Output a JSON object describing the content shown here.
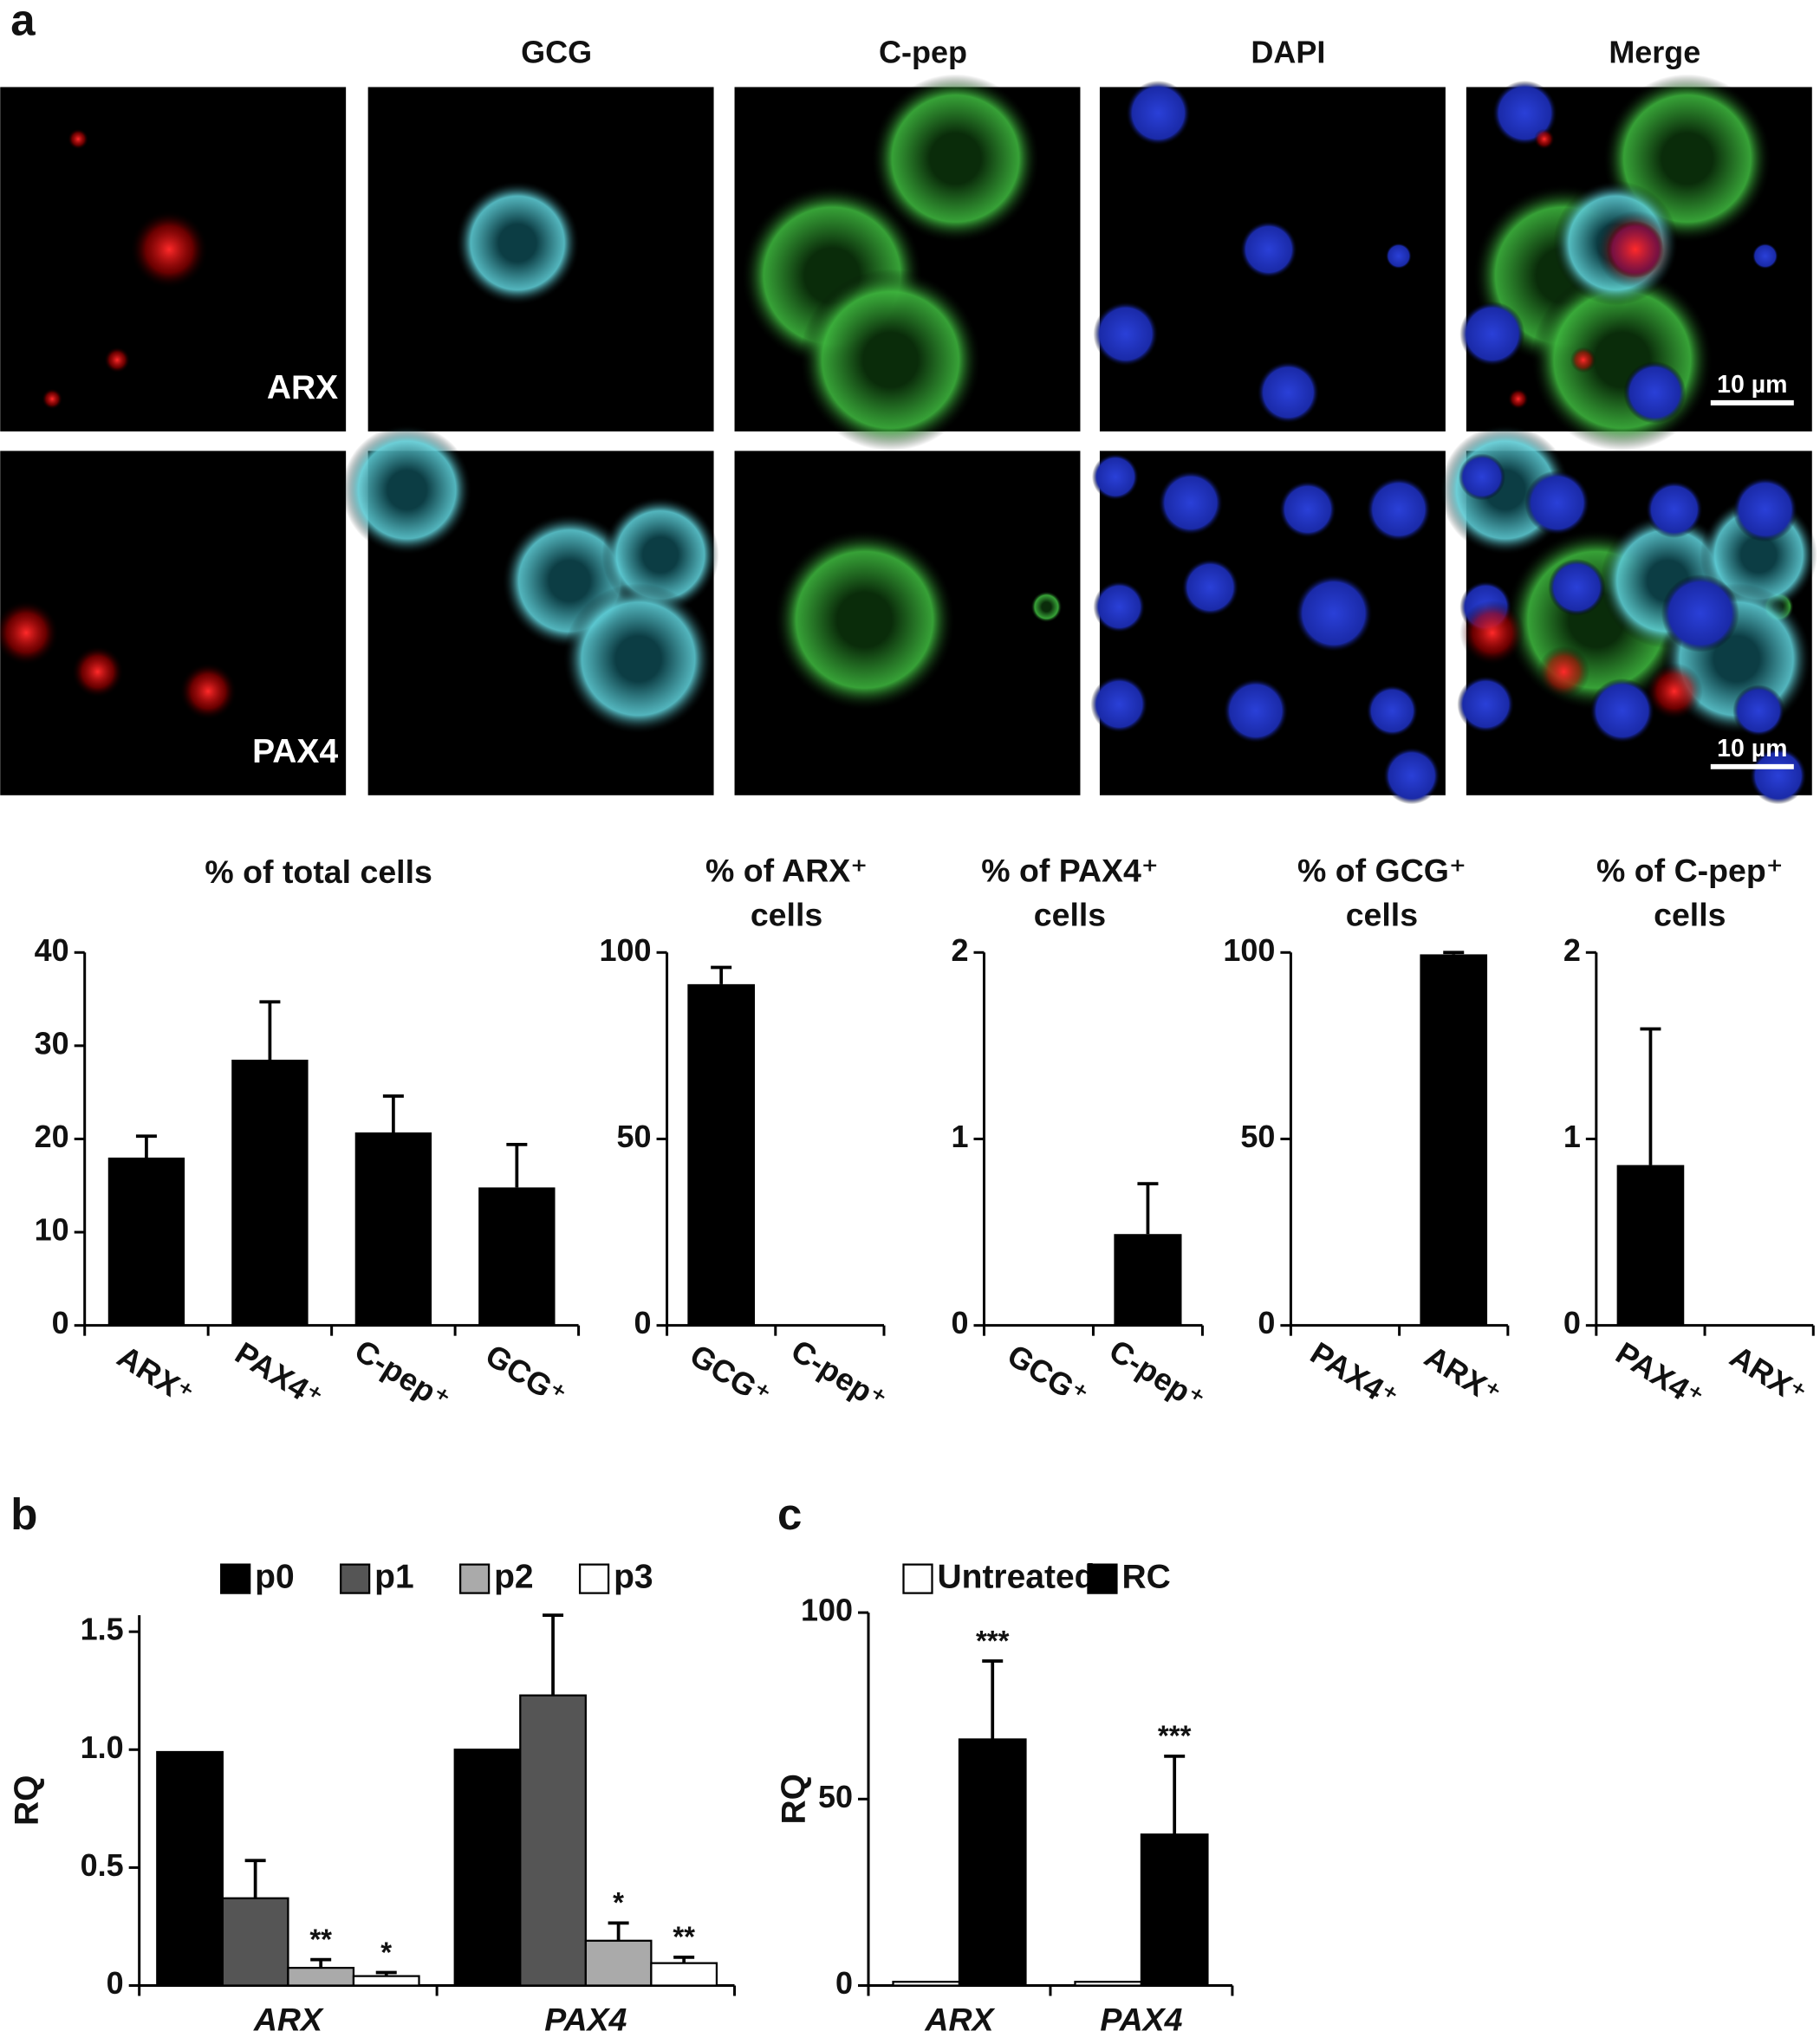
{
  "panels": [
    "a",
    "b",
    "c"
  ],
  "microscopy": {
    "columns": [
      "GCG",
      "C-pep",
      "DAPI",
      "Merge"
    ],
    "rows": [
      "ARX",
      "PAX4"
    ],
    "scale_bar": "10 µm"
  },
  "chart_data": [
    {
      "type": "bar",
      "title": [
        "% of total cells"
      ],
      "categories": [
        "ARX⁺",
        "PAX4⁺",
        "C-pep⁺",
        "GCG⁺"
      ],
      "values": [
        18,
        28.5,
        20.7,
        14.8
      ],
      "errors": [
        2.3,
        6.2,
        3.9,
        4.6
      ],
      "color": "#000000",
      "ylim": [
        0,
        40
      ],
      "yticks": [
        0,
        10,
        20,
        30,
        40
      ]
    },
    {
      "type": "bar",
      "title": [
        "% of ARX⁺",
        "cells"
      ],
      "categories": [
        "GCG⁺",
        "C-pep⁺"
      ],
      "values": [
        91.5,
        0
      ],
      "errors": [
        4.5,
        null
      ],
      "color": "#000000",
      "ylim": [
        0,
        100
      ],
      "yticks": [
        0,
        50,
        100
      ]
    },
    {
      "type": "bar",
      "title": [
        "% of PAX4⁺",
        "cells"
      ],
      "categories": [
        "GCG⁺",
        "C-pep⁺"
      ],
      "values": [
        0,
        0.49
      ],
      "errors": [
        null,
        0.27
      ],
      "color": "#000000",
      "ylim": [
        0,
        2
      ],
      "yticks": [
        0,
        1,
        2
      ]
    },
    {
      "type": "bar",
      "title": [
        "% of GCG⁺",
        "cells"
      ],
      "categories": [
        "PAX4⁺",
        "ARX⁺"
      ],
      "values": [
        0,
        99.5
      ],
      "errors": [
        null,
        0.5
      ],
      "color": "#000000",
      "ylim": [
        0,
        100
      ],
      "yticks": [
        0,
        50,
        100
      ]
    },
    {
      "type": "bar",
      "title": [
        "% of C-pep⁺",
        "cells"
      ],
      "categories": [
        "PAX4⁺",
        "ARX⁺"
      ],
      "values": [
        0.86,
        0
      ],
      "errors": [
        0.73,
        null
      ],
      "color": "#000000",
      "ylim": [
        0,
        2
      ],
      "yticks": [
        0,
        1,
        2
      ]
    },
    {
      "type": "grouped-bar",
      "y_label": "RQ",
      "categories": [
        "ARX",
        "PAX4"
      ],
      "ylim": [
        0,
        1.57
      ],
      "yticks": [
        0,
        0.5,
        {
          "value": 1,
          "label": "1.0"
        },
        1.5
      ],
      "series": [
        {
          "name": "p0",
          "color": "#000000",
          "values": [
            0.99,
            1.0
          ],
          "errors": [
            null,
            null
          ],
          "labels": [
            null,
            null
          ]
        },
        {
          "name": "p1",
          "color": "#555555",
          "values": [
            0.37,
            1.23
          ],
          "errors": [
            0.16,
            0.34
          ],
          "labels": [
            null,
            null
          ]
        },
        {
          "name": "p2",
          "color": "#aaaaaa",
          "values": [
            0.075,
            0.19
          ],
          "errors": [
            0.035,
            0.075
          ],
          "labels": [
            "**",
            "*"
          ]
        },
        {
          "name": "p3",
          "color": "#ffffff",
          "values": [
            0.04,
            0.095
          ],
          "errors": [
            0.015,
            0.025
          ],
          "labels": [
            "*",
            "**"
          ]
        }
      ]
    },
    {
      "type": "grouped-bar",
      "y_label": "RQ",
      "categories": [
        "ARX",
        "PAX4"
      ],
      "ylim": [
        0,
        100
      ],
      "yticks": [
        0,
        50,
        100
      ],
      "series": [
        {
          "name": "Untreated",
          "color": "#ffffff",
          "values": [
            1,
            1
          ],
          "errors": [
            null,
            null
          ],
          "labels": [
            null,
            null
          ]
        },
        {
          "name": "RC",
          "color": "#000000",
          "values": [
            66,
            40.5
          ],
          "errors": [
            21,
            21
          ],
          "labels": [
            "***",
            "***"
          ]
        }
      ]
    }
  ]
}
